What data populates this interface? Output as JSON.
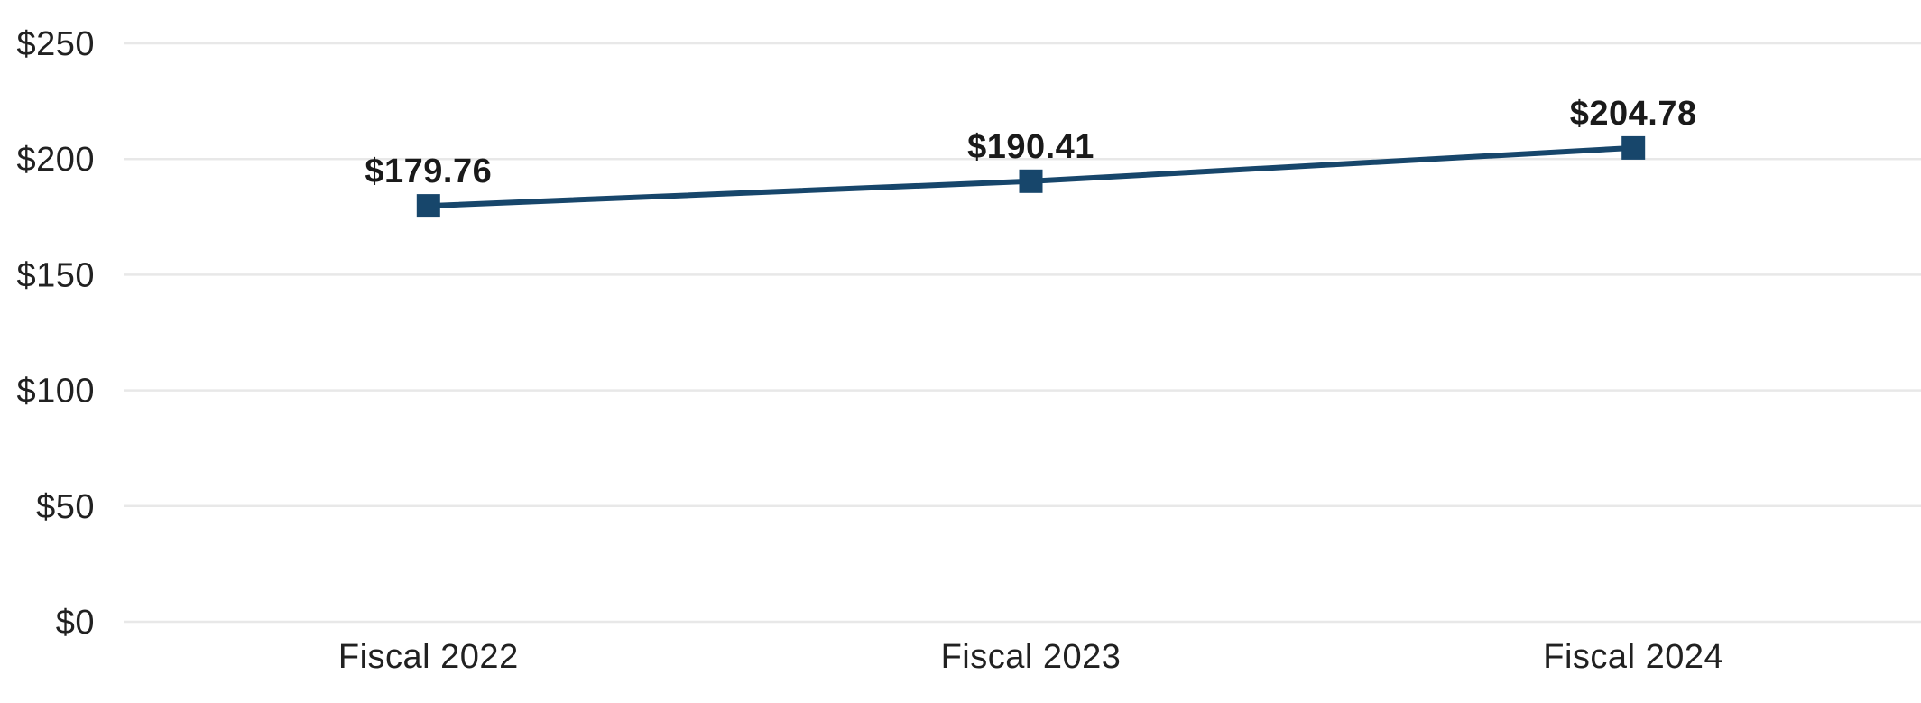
{
  "chart_data": {
    "type": "line",
    "title": "",
    "categories": [
      "Fiscal 2022",
      "Fiscal 2023",
      "Fiscal 2024"
    ],
    "values": [
      179.76,
      190.41,
      204.78
    ],
    "data_labels": [
      "$179.76",
      "$190.41",
      "$204.78"
    ],
    "y_tick_values": [
      250,
      200,
      150,
      100,
      50,
      0
    ],
    "y_tick_labels": [
      "$250",
      "$200",
      "$150",
      "$100",
      "$50",
      "$0"
    ],
    "ylim": [
      0,
      250
    ],
    "xlabel": "",
    "ylabel": "",
    "grid": "horizontal",
    "legend": "none",
    "marker_shape": "square",
    "colors": {
      "line": "#17466B",
      "marker": "#17466B",
      "gridline": "#E8E8E8",
      "tick_text": "#212121",
      "data_label_text": "#1A1A1A"
    }
  }
}
